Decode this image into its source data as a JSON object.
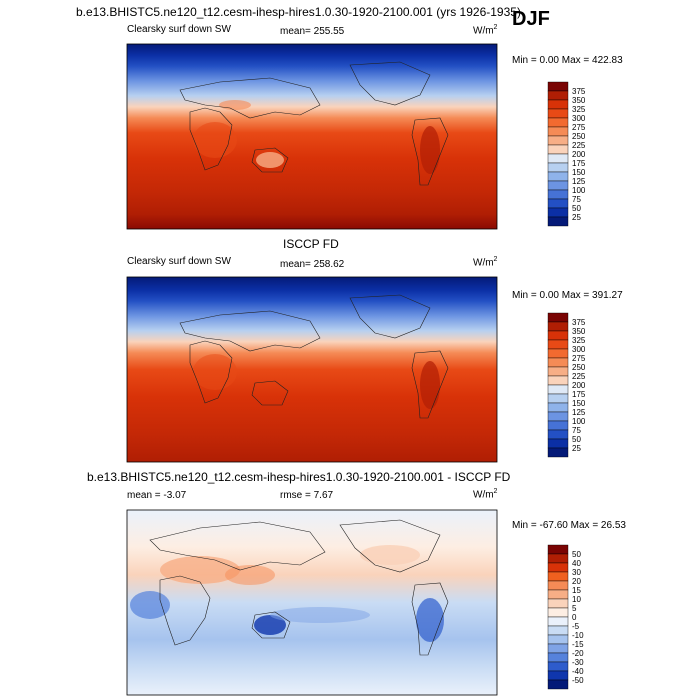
{
  "season": "DJF",
  "panels": [
    {
      "title": "b.e13.BHISTC5.ne120_t12.cesm-ihesp-hires1.0.30-1920-2100.001 (yrs 1926-1935)",
      "variable": "Clearsky surf down SW",
      "mean": "mean= 255.55",
      "units": "W/m",
      "units_exp": "2",
      "minmax": "Min =   0.00 Max = 422.83",
      "levels": [
        "375",
        "350",
        "325",
        "300",
        "275",
        "250",
        "225",
        "200",
        "175",
        "150",
        "125",
        "100",
        "75",
        "50",
        "25"
      ]
    },
    {
      "title": "ISCCP FD",
      "variable": "Clearsky surf down SW",
      "mean": "mean= 258.62",
      "units": "W/m",
      "units_exp": "2",
      "minmax": "Min =   0.00 Max = 391.27",
      "levels": [
        "375",
        "350",
        "325",
        "300",
        "275",
        "250",
        "225",
        "200",
        "175",
        "150",
        "125",
        "100",
        "75",
        "50",
        "25"
      ]
    },
    {
      "title": "b.e13.BHISTC5.ne120_t12.cesm-ihesp-hires1.0.30-1920-2100.001 - ISCCP FD",
      "variable": "mean =  -3.07",
      "mean": "rmse =   7.67",
      "units": "W/m",
      "units_exp": "2",
      "minmax": "Min = -67.60 Max =  26.53",
      "levels": [
        "50",
        "40",
        "30",
        "20",
        "15",
        "10",
        "5",
        "0",
        "-5",
        "-10",
        "-15",
        "-20",
        "-30",
        "-40",
        "-50"
      ]
    }
  ],
  "colors": {
    "abs_scale": [
      "#7a0403",
      "#b01e04",
      "#d83208",
      "#e84a16",
      "#f26a30",
      "#f58b56",
      "#f7ae86",
      "#fad3bb",
      "#dfe9f6",
      "#b7d0f0",
      "#8fb3ea",
      "#6c94e2",
      "#4672d6",
      "#2350c4",
      "#0b2fa5",
      "#041a78"
    ],
    "diff_scale": [
      "#7a0403",
      "#b01e04",
      "#d83208",
      "#f0601f",
      "#f58b56",
      "#f7ae86",
      "#fad3bb",
      "#fdeee3",
      "#eaf1fb",
      "#c9dcf4",
      "#a6c3ee",
      "#7fa3e6",
      "#5682dc",
      "#2e5ccc",
      "#0f36ad",
      "#041a78"
    ]
  },
  "chart_data": [
    {
      "type": "heatmap",
      "title": "b.e13.BHISTC5.ne120_t12.cesm-ihesp-hires1.0.30-1920-2100.001 (yrs 1926-1935)",
      "subtitle": "Clearsky surf down SW",
      "units": "W/m2",
      "mean": 255.55,
      "min": 0.0,
      "max": 422.83,
      "contour_levels": [
        25,
        50,
        75,
        100,
        125,
        150,
        175,
        200,
        225,
        250,
        275,
        300,
        325,
        350,
        375
      ],
      "zonal_profile_description": [
        {
          "lat": 90,
          "value": 0
        },
        {
          "lat": 70,
          "value": 40
        },
        {
          "lat": 55,
          "value": 110
        },
        {
          "lat": 40,
          "value": 190
        },
        {
          "lat": 25,
          "value": 260
        },
        {
          "lat": 10,
          "value": 315
        },
        {
          "lat": 0,
          "value": 330
        },
        {
          "lat": -20,
          "value": 355
        },
        {
          "lat": -40,
          "value": 370
        },
        {
          "lat": -60,
          "value": 375
        },
        {
          "lat": -80,
          "value": 380
        },
        {
          "lat": -90,
          "value": 385
        }
      ]
    },
    {
      "type": "heatmap",
      "title": "ISCCP FD",
      "subtitle": "Clearsky surf down SW",
      "units": "W/m2",
      "mean": 258.62,
      "min": 0.0,
      "max": 391.27,
      "contour_levels": [
        25,
        50,
        75,
        100,
        125,
        150,
        175,
        200,
        225,
        250,
        275,
        300,
        325,
        350,
        375
      ],
      "zonal_profile_description": [
        {
          "lat": 90,
          "value": 0
        },
        {
          "lat": 70,
          "value": 35
        },
        {
          "lat": 55,
          "value": 100
        },
        {
          "lat": 40,
          "value": 185
        },
        {
          "lat": 25,
          "value": 255
        },
        {
          "lat": 10,
          "value": 310
        },
        {
          "lat": 0,
          "value": 325
        },
        {
          "lat": -20,
          "value": 350
        },
        {
          "lat": -40,
          "value": 365
        },
        {
          "lat": -60,
          "value": 372
        },
        {
          "lat": -80,
          "value": 378
        },
        {
          "lat": -90,
          "value": 380
        }
      ]
    },
    {
      "type": "heatmap",
      "title": "b.e13.BHISTC5.ne120_t12.cesm-ihesp-hires1.0.30-1920-2100.001 - ISCCP FD",
      "units": "W/m2",
      "mean": -3.07,
      "rmse": 7.67,
      "min": -67.6,
      "max": 26.53,
      "contour_levels": [
        -50,
        -40,
        -30,
        -20,
        -15,
        -10,
        -5,
        0,
        5,
        10,
        15,
        20,
        30,
        40,
        50
      ]
    }
  ]
}
